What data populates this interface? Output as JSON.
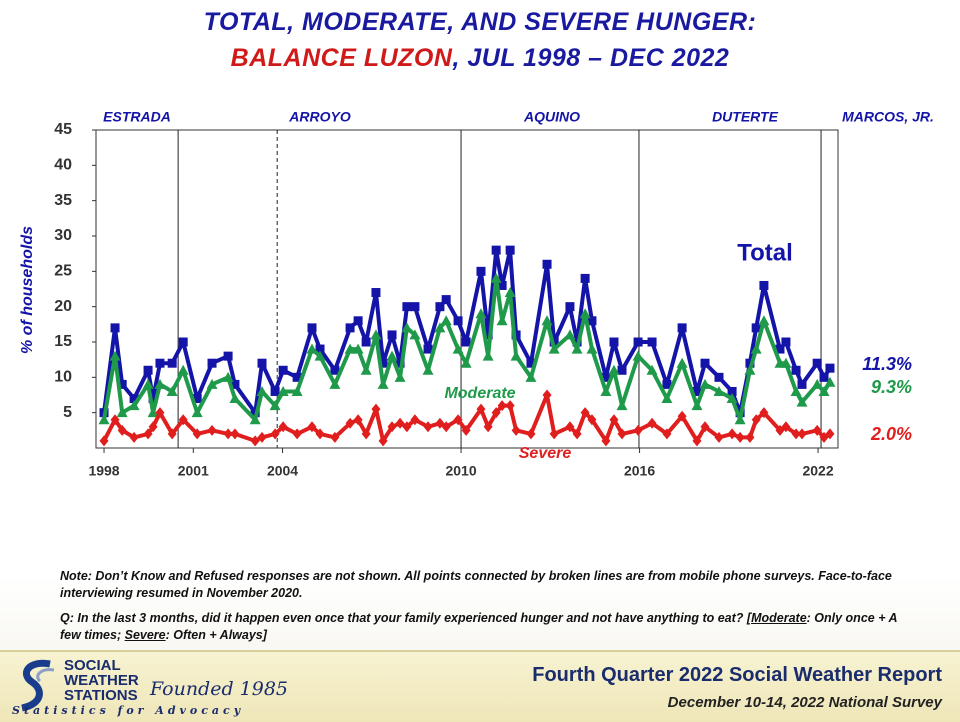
{
  "chart_data": {
    "type": "line",
    "title_line1": "TOTAL, MODERATE, AND SEVERE HUNGER:",
    "title_region": "BALANCE LUZON",
    "title_period": ", JUL 1998 – DEC 2022",
    "y_label": "% of households",
    "xlim": [
      1997.73,
      2022.67
    ],
    "xticks": [
      1998,
      2001,
      2004,
      2010,
      2016,
      2022
    ],
    "ylim": [
      0,
      45
    ],
    "yticks": [
      5,
      10,
      15,
      20,
      25,
      30,
      35,
      40,
      45
    ],
    "presidents": [
      {
        "name": "ESTRADA"
      },
      {
        "name": "ARROYO",
        "start": 2000.49
      },
      {
        "name": "ARROYO",
        "start": 2003.82,
        "dashed": true
      },
      {
        "name": "AQUINO",
        "start": 2010.0
      },
      {
        "name": "DUTERTE",
        "start": 2015.98
      },
      {
        "name": "MARCOS, JR.",
        "start": 2022.1
      }
    ],
    "x": [
      1998.0,
      1998.37,
      1998.61,
      1999.01,
      1999.48,
      1999.65,
      1999.88,
      2000.29,
      2000.66,
      2001.13,
      2001.63,
      2002.17,
      2002.4,
      2003.08,
      2003.31,
      2003.75,
      2004.02,
      2004.49,
      2004.99,
      2005.26,
      2005.76,
      2006.27,
      2006.54,
      2006.81,
      2007.14,
      2007.38,
      2007.68,
      2007.95,
      2008.18,
      2008.45,
      2008.89,
      2009.29,
      2009.5,
      2009.9,
      2010.17,
      2010.67,
      2010.91,
      2011.18,
      2011.38,
      2011.65,
      2011.85,
      2012.35,
      2012.89,
      2013.13,
      2013.66,
      2013.9,
      2014.17,
      2014.4,
      2014.87,
      2015.14,
      2015.41,
      2015.95,
      2016.42,
      2016.92,
      2017.43,
      2017.93,
      2018.2,
      2018.67,
      2019.11,
      2019.38,
      2019.71,
      2019.92,
      2020.18,
      2020.72,
      2020.92,
      2021.26,
      2021.46,
      2021.97,
      2022.2,
      2022.4
    ],
    "series": [
      {
        "name": "Total",
        "color": "#1414a8",
        "marker": "square",
        "values": [
          5,
          17,
          9,
          7,
          11,
          7,
          12,
          12,
          15,
          7,
          12,
          13,
          9,
          5,
          12,
          8,
          11,
          10,
          17,
          14,
          11,
          17,
          18,
          15,
          22,
          12,
          16,
          12,
          20,
          20,
          14,
          20,
          21,
          18,
          15,
          25,
          16,
          28,
          23,
          28,
          16,
          12,
          26,
          15,
          20,
          15,
          24,
          18,
          10,
          15,
          11,
          15,
          15,
          9,
          17,
          8,
          12,
          10,
          8,
          5,
          12,
          17,
          23,
          14,
          15,
          11,
          9,
          12,
          10,
          11.3
        ],
        "value_labels": [
          null,
          null,
          null,
          null,
          null,
          null,
          null,
          null,
          null,
          null,
          null,
          null,
          null,
          null,
          null,
          null,
          null,
          null,
          null,
          null,
          null,
          null,
          null,
          null,
          null,
          null,
          null,
          null,
          null,
          null,
          null,
          null,
          null,
          null,
          null,
          null,
          null,
          null,
          null,
          null,
          null,
          null,
          null,
          null,
          null,
          null,
          null,
          null,
          null,
          null,
          null,
          null,
          null,
          null,
          null,
          null,
          null,
          null,
          null,
          null,
          null,
          null,
          null,
          null,
          null,
          null,
          null,
          null,
          null,
          "11.3%"
        ]
      },
      {
        "name": "Moderate",
        "color": "#1f9a4a",
        "marker": "triangle",
        "values": [
          4,
          13,
          5,
          6,
          9,
          5,
          9,
          8,
          11,
          5,
          9,
          10,
          7,
          4,
          8,
          6,
          8,
          8,
          14,
          13,
          9,
          14,
          14,
          11,
          16,
          9,
          13,
          10,
          17,
          16,
          11,
          17,
          18,
          14,
          12,
          19,
          13,
          24,
          18,
          22,
          13,
          10,
          18,
          14,
          16,
          14,
          19,
          14,
          8,
          11,
          6,
          13,
          11,
          7,
          12,
          6,
          9,
          8,
          7,
          4,
          11,
          14,
          18,
          12,
          12,
          8,
          6.5,
          9,
          8,
          9.3
        ],
        "value_labels": [
          null,
          null,
          null,
          null,
          null,
          null,
          null,
          null,
          null,
          null,
          null,
          null,
          null,
          null,
          null,
          null,
          null,
          null,
          null,
          null,
          null,
          null,
          null,
          null,
          null,
          null,
          null,
          null,
          null,
          null,
          null,
          null,
          null,
          null,
          null,
          null,
          null,
          null,
          null,
          null,
          null,
          null,
          null,
          null,
          null,
          null,
          null,
          null,
          null,
          null,
          null,
          null,
          null,
          null,
          null,
          null,
          null,
          null,
          null,
          null,
          null,
          null,
          null,
          null,
          null,
          null,
          null,
          null,
          null,
          "9.3%"
        ]
      },
      {
        "name": "Severe",
        "color": "#e01e1e",
        "marker": "diamond",
        "values": [
          1,
          4,
          2.5,
          1.5,
          2,
          3,
          5,
          2,
          4,
          2,
          2.5,
          2,
          2,
          1,
          1.5,
          2,
          3,
          2,
          3,
          2,
          1.5,
          3.5,
          4,
          2,
          5.5,
          1,
          3,
          3.5,
          3,
          4,
          3,
          3.5,
          3,
          4,
          2.5,
          5.5,
          3,
          5,
          6,
          6,
          2.5,
          2,
          7.5,
          2,
          3,
          2,
          5,
          4,
          1,
          4,
          2,
          2.5,
          3.5,
          2,
          4.5,
          1,
          3,
          1.5,
          2,
          1.5,
          1.5,
          4,
          5,
          2.5,
          3,
          2,
          2,
          2.5,
          1.5,
          2.0
        ],
        "value_labels": [
          null,
          null,
          null,
          null,
          null,
          null,
          null,
          null,
          null,
          null,
          null,
          null,
          null,
          null,
          null,
          null,
          null,
          null,
          null,
          null,
          null,
          null,
          null,
          null,
          null,
          null,
          null,
          null,
          null,
          null,
          null,
          null,
          null,
          null,
          null,
          null,
          null,
          null,
          null,
          null,
          null,
          null,
          null,
          null,
          null,
          null,
          null,
          null,
          null,
          null,
          null,
          null,
          null,
          null,
          null,
          null,
          null,
          null,
          null,
          null,
          null,
          null,
          null,
          null,
          null,
          null,
          null,
          null,
          null,
          "2.0%"
        ]
      }
    ]
  },
  "notes": {
    "note": "Note: Don’t Know and Refused responses are not shown. All points connected by broken lines are from mobile phone surveys. Face-to-face interviewing resumed in November 2020.",
    "question_start": "Q: In the last 3 months, did it happen even once that your family experienced hunger and not have anything to eat? [",
    "moderate": "Moderate",
    "moderate_def": ": Only once + A few times; ",
    "severe": "Severe",
    "severe_def": ": Often + Always]"
  },
  "footer": {
    "logo_line1": "SOCIAL",
    "logo_line2": "WEATHER",
    "logo_line3": "STATIONS",
    "founded": "Founded 1985",
    "tagline": "Statistics for Advocacy",
    "report": "Fourth Quarter 2022 Social Weather Report",
    "survey": "December 10-14, 2022 National Survey"
  }
}
